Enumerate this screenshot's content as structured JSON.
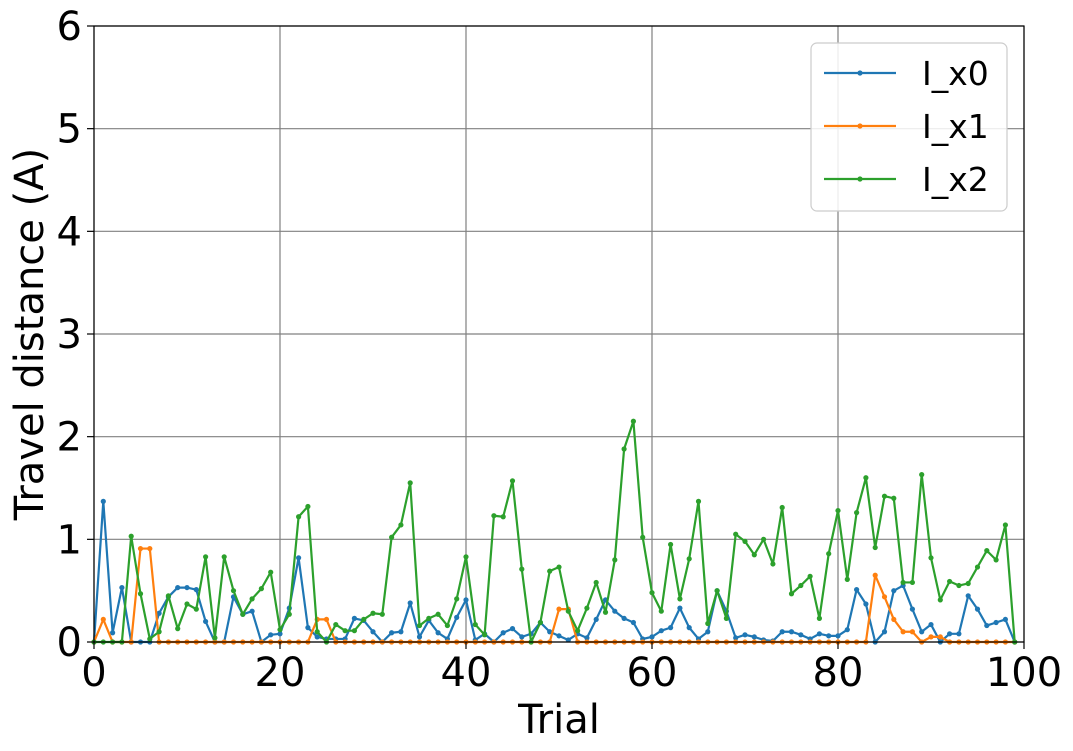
{
  "chart_data": {
    "type": "line",
    "title": "",
    "xlabel": "Trial",
    "ylabel": "Travel distance (A)",
    "xlim": [
      0,
      100
    ],
    "ylim": [
      0,
      6
    ],
    "xticks": [
      0,
      20,
      40,
      60,
      80,
      100
    ],
    "yticks": [
      0,
      1,
      2,
      3,
      4,
      5,
      6
    ],
    "xtick_labels": [
      "0",
      "20",
      "40",
      "60",
      "80",
      "100"
    ],
    "ytick_labels": [
      "0",
      "1",
      "2",
      "3",
      "4",
      "5",
      "6"
    ],
    "grid": true,
    "legend_position": "top-right",
    "x": [
      0,
      1,
      2,
      3,
      4,
      5,
      6,
      7,
      8,
      9,
      10,
      11,
      12,
      13,
      14,
      15,
      16,
      17,
      18,
      19,
      20,
      21,
      22,
      23,
      24,
      25,
      26,
      27,
      28,
      29,
      30,
      31,
      32,
      33,
      34,
      35,
      36,
      37,
      38,
      39,
      40,
      41,
      42,
      43,
      44,
      45,
      46,
      47,
      48,
      49,
      50,
      51,
      52,
      53,
      54,
      55,
      56,
      57,
      58,
      59,
      60,
      61,
      62,
      63,
      64,
      65,
      66,
      67,
      68,
      69,
      70,
      71,
      72,
      73,
      74,
      75,
      76,
      77,
      78,
      79,
      80,
      81,
      82,
      83,
      84,
      85,
      86,
      87,
      88,
      89,
      90,
      91,
      92,
      93,
      94,
      95,
      96,
      97,
      98,
      99
    ],
    "series": [
      {
        "name": "I_x0",
        "color": "#1f77b4",
        "values": [
          0.0,
          1.37,
          0.09,
          0.53,
          0.0,
          0.0,
          0.0,
          0.28,
          0.44,
          0.53,
          0.53,
          0.51,
          0.2,
          0.0,
          0.0,
          0.44,
          0.27,
          0.3,
          0.0,
          0.07,
          0.08,
          0.33,
          0.82,
          0.14,
          0.05,
          0.03,
          0.03,
          0.03,
          0.23,
          0.21,
          0.1,
          0.0,
          0.09,
          0.1,
          0.38,
          0.05,
          0.21,
          0.09,
          0.03,
          0.24,
          0.41,
          0.02,
          0.08,
          0.0,
          0.09,
          0.13,
          0.05,
          0.08,
          0.19,
          0.1,
          0.06,
          0.02,
          0.08,
          0.04,
          0.22,
          0.41,
          0.3,
          0.23,
          0.19,
          0.03,
          0.05,
          0.11,
          0.14,
          0.33,
          0.14,
          0.03,
          0.1,
          0.5,
          0.3,
          0.04,
          0.07,
          0.05,
          0.02,
          0.01,
          0.1,
          0.1,
          0.07,
          0.03,
          0.08,
          0.06,
          0.06,
          0.12,
          0.51,
          0.37,
          0.0,
          0.1,
          0.5,
          0.55,
          0.32,
          0.1,
          0.17,
          0.0,
          0.08,
          0.08,
          0.45,
          0.32,
          0.16,
          0.19,
          0.22,
          0.0
        ]
      },
      {
        "name": "I_x1",
        "color": "#ff7f0e",
        "values": [
          0.0,
          0.22,
          0.0,
          0.0,
          0.0,
          0.91,
          0.91,
          0.0,
          0.0,
          0.0,
          0.0,
          0.0,
          0.0,
          0.0,
          0.0,
          0.0,
          0.0,
          0.0,
          0.0,
          0.0,
          0.0,
          0.0,
          0.0,
          0.0,
          0.22,
          0.22,
          0.0,
          0.0,
          0.0,
          0.0,
          0.0,
          0.0,
          0.0,
          0.0,
          0.0,
          0.0,
          0.0,
          0.0,
          0.0,
          0.0,
          0.0,
          0.0,
          0.0,
          0.0,
          0.0,
          0.0,
          0.0,
          0.0,
          0.0,
          0.0,
          0.32,
          0.32,
          0.0,
          0.0,
          0.0,
          0.0,
          0.0,
          0.0,
          0.0,
          0.0,
          0.0,
          0.0,
          0.0,
          0.0,
          0.0,
          0.0,
          0.0,
          0.0,
          0.0,
          0.0,
          0.0,
          0.0,
          0.0,
          0.0,
          0.0,
          0.0,
          0.0,
          0.0,
          0.0,
          0.0,
          0.0,
          0.0,
          0.0,
          0.0,
          0.65,
          0.44,
          0.22,
          0.1,
          0.1,
          0.0,
          0.05,
          0.05,
          0.0,
          0.0,
          0.0,
          0.0,
          0.0,
          0.0,
          0.0,
          0.0
        ]
      },
      {
        "name": "I_x2",
        "color": "#2ca02c",
        "values": [
          0.0,
          0.0,
          0.0,
          0.0,
          1.03,
          0.47,
          0.03,
          0.1,
          0.45,
          0.13,
          0.37,
          0.32,
          0.83,
          0.04,
          0.83,
          0.5,
          0.27,
          0.42,
          0.52,
          0.68,
          0.12,
          0.27,
          1.22,
          1.32,
          0.1,
          0.0,
          0.17,
          0.11,
          0.11,
          0.22,
          0.28,
          0.27,
          1.02,
          1.14,
          1.55,
          0.16,
          0.23,
          0.27,
          0.16,
          0.42,
          0.83,
          0.17,
          0.07,
          1.23,
          1.22,
          1.57,
          0.71,
          0.0,
          0.19,
          0.69,
          0.73,
          0.3,
          0.11,
          0.33,
          0.58,
          0.29,
          0.8,
          1.88,
          2.15,
          1.02,
          0.48,
          0.3,
          0.95,
          0.42,
          0.81,
          1.37,
          0.18,
          0.5,
          0.23,
          1.05,
          0.98,
          0.85,
          1.0,
          0.76,
          1.31,
          0.47,
          0.55,
          0.64,
          0.23,
          0.86,
          1.28,
          0.61,
          1.26,
          1.6,
          0.92,
          1.42,
          1.4,
          0.58,
          0.58,
          1.63,
          0.82,
          0.41,
          0.59,
          0.55,
          0.57,
          0.73,
          0.89,
          0.8,
          1.14,
          0.0
        ]
      }
    ]
  }
}
